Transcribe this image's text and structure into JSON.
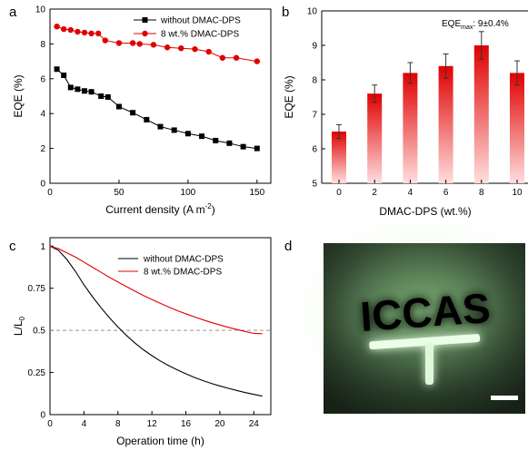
{
  "panel_labels": [
    "a",
    "b",
    "c",
    "d"
  ],
  "chart_data": [
    {
      "panel": "a",
      "type": "line",
      "xlabel": "Current density (A m",
      "xlabel_sup": "-2",
      "xlabel_end": ")",
      "ylabel": "EQE (%)",
      "xlim": [
        0,
        160
      ],
      "ylim": [
        0,
        10
      ],
      "xticks": [
        0,
        50,
        100,
        150
      ],
      "yticks": [
        0,
        2,
        4,
        6,
        8,
        10
      ],
      "legend_position": "top-right",
      "grid": false,
      "series": [
        {
          "name": "without DMAC-DPS",
          "marker": "square",
          "color": "#000000",
          "x": [
            5,
            10,
            15,
            20,
            25,
            30,
            37,
            42,
            50,
            60,
            70,
            80,
            90,
            100,
            110,
            120,
            130,
            140,
            150
          ],
          "y": [
            6.55,
            6.2,
            5.5,
            5.4,
            5.3,
            5.25,
            5.0,
            4.95,
            4.4,
            4.05,
            3.65,
            3.25,
            3.05,
            2.85,
            2.7,
            2.45,
            2.3,
            2.1,
            2.0
          ]
        },
        {
          "name": "8 wt.% DMAC-DPS",
          "marker": "circle",
          "color": "#e00000",
          "x": [
            5,
            10,
            15,
            20,
            25,
            30,
            35,
            40,
            50,
            60,
            65,
            75,
            85,
            95,
            105,
            115,
            125,
            135,
            150
          ],
          "y": [
            9.0,
            8.85,
            8.8,
            8.7,
            8.65,
            8.6,
            8.6,
            8.2,
            8.05,
            8.05,
            8.0,
            7.95,
            7.8,
            7.75,
            7.7,
            7.55,
            7.2,
            7.2,
            7.0
          ]
        }
      ]
    },
    {
      "panel": "b",
      "type": "bar",
      "xlabel": "DMAC-DPS (wt.%)",
      "ylabel": "EQE (%)",
      "ylim": [
        5,
        10
      ],
      "yticks": [
        5,
        6,
        7,
        8,
        9,
        10
      ],
      "categories": [
        "0",
        "2",
        "4",
        "6",
        "8",
        "10"
      ],
      "values": [
        6.5,
        7.6,
        8.2,
        8.4,
        9.0,
        8.2
      ],
      "errors": [
        0.2,
        0.25,
        0.3,
        0.35,
        0.4,
        0.35
      ],
      "bar_color_top": "#e00000",
      "bar_color_bottom": "#ffdede",
      "annotation_main": "EQE",
      "annotation_sub": "max",
      "annotation_value": ": 9±0.4%"
    },
    {
      "panel": "c",
      "type": "line",
      "xlabel": "Operation time (h)",
      "ylabel": "L/L",
      "ylabel_sub": "0",
      "xlim": [
        0,
        26
      ],
      "ylim": [
        0,
        1.05
      ],
      "xticks": [
        0,
        4,
        8,
        12,
        16,
        20,
        24
      ],
      "yticks": [
        0,
        0.25,
        0.5,
        0.75,
        1
      ],
      "ytick_labels": [
        "0",
        "0.25",
        "0.5",
        "0.75",
        "1"
      ],
      "reference_line_y": 0.5,
      "legend_position": "top-right",
      "series": [
        {
          "name": "without  DMAC-DPS",
          "color": "#000000",
          "x": [
            0,
            1,
            2,
            3,
            4,
            5,
            6,
            7,
            8,
            9,
            10,
            11,
            12,
            13,
            14,
            15,
            16,
            17,
            18,
            19,
            20,
            21,
            22,
            23,
            24,
            25
          ],
          "y": [
            1.0,
            0.975,
            0.92,
            0.85,
            0.77,
            0.7,
            0.635,
            0.575,
            0.52,
            0.47,
            0.425,
            0.385,
            0.35,
            0.318,
            0.29,
            0.265,
            0.242,
            0.221,
            0.202,
            0.185,
            0.17,
            0.156,
            0.143,
            0.131,
            0.12,
            0.11
          ]
        },
        {
          "name": "8 wt.% DMAC-DPS",
          "color": "#e00000",
          "x": [
            0,
            1,
            2,
            3,
            4,
            5,
            6,
            7,
            8,
            9,
            10,
            11,
            12,
            13,
            14,
            15,
            16,
            17,
            18,
            19,
            20,
            21,
            22,
            23,
            24,
            25
          ],
          "y": [
            1.0,
            0.985,
            0.96,
            0.935,
            0.905,
            0.875,
            0.845,
            0.815,
            0.787,
            0.76,
            0.733,
            0.707,
            0.683,
            0.66,
            0.638,
            0.617,
            0.598,
            0.58,
            0.563,
            0.547,
            0.532,
            0.518,
            0.505,
            0.493,
            0.482,
            0.48
          ]
        }
      ]
    }
  ],
  "photo": {
    "panel": "d",
    "glowing_text": "ICCAS",
    "scale_bar": true
  }
}
